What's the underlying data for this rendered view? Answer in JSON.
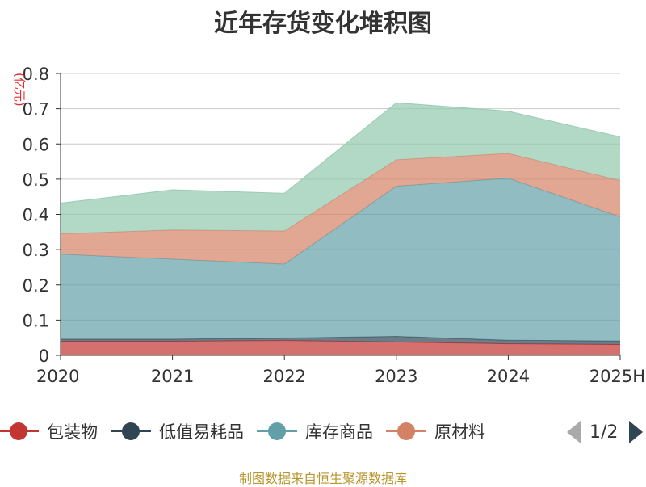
{
  "chart_data": {
    "type": "area",
    "stacked": true,
    "title": "近年存货变化堆积图",
    "unit_label": "(亿元)",
    "categories": [
      "2020",
      "2021",
      "2022",
      "2023",
      "2024",
      "2025H"
    ],
    "ylim": [
      0,
      0.8
    ],
    "y_ticks": [
      "0",
      "0.1",
      "0.2",
      "0.3",
      "0.4",
      "0.5",
      "0.6",
      "0.7",
      "0.8"
    ],
    "y_tick_values": [
      0,
      0.1,
      0.2,
      0.3,
      0.4,
      0.5,
      0.6,
      0.7,
      0.8
    ],
    "grid": true,
    "legend_position": "bottom-left",
    "series": [
      {
        "name": "包装物",
        "color": "#c23531",
        "values": [
          0.04,
          0.04,
          0.042,
          0.038,
          0.033,
          0.031
        ]
      },
      {
        "name": "低值易耗品",
        "color": "#2f4554",
        "values": [
          0.006,
          0.006,
          0.007,
          0.016,
          0.01,
          0.01
        ]
      },
      {
        "name": "库存商品",
        "color": "#61a0a8",
        "values": [
          0.241,
          0.227,
          0.21,
          0.426,
          0.46,
          0.352
        ]
      },
      {
        "name": "原材料",
        "color": "#d48265",
        "values": [
          0.058,
          0.083,
          0.094,
          0.075,
          0.07,
          0.103
        ]
      },
      {
        "name": "",
        "color": "#91c7ae",
        "values": [
          0.087,
          0.114,
          0.107,
          0.162,
          0.12,
          0.124
        ]
      }
    ]
  },
  "legend": {
    "page_text": "1/2"
  },
  "footer": {
    "source": "制图数据来自恒生聚源数据库"
  }
}
